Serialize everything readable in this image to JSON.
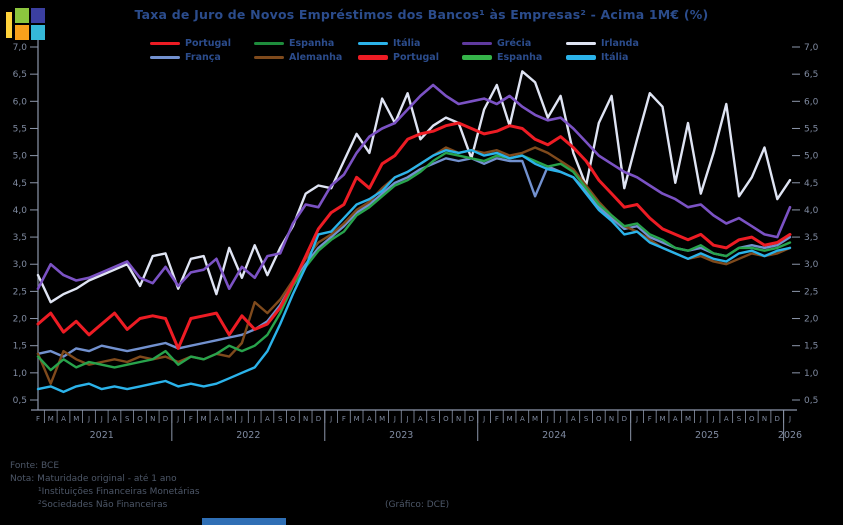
{
  "logo": {
    "bar_color": "#ffd23b",
    "tl_color": "#8cc63e",
    "tr_color": "#3b3fa0",
    "bl_color": "#f9a11b",
    "br_color": "#35b8d8"
  },
  "title": "Taxa de Juro de Novos Empréstimos dos Bancos¹ às Empresas² - Acima 1M€ (%)",
  "legend": {
    "items": [
      {
        "label": "Portugal",
        "color": "#ed1c24"
      },
      {
        "label": "Espanha",
        "color": "#1e8c3c"
      },
      {
        "label": "Itália",
        "color": "#2bb3ea"
      },
      {
        "label": "Grécia",
        "color": "#5f3a9e"
      },
      {
        "label": "Irlanda",
        "color": "#dfe4f3"
      },
      {
        "label": "França",
        "color": "#7291cf"
      },
      {
        "label": "Alemanha",
        "color": "#7f4a1c"
      },
      {
        "label": "Portugal",
        "color": "#ed1c24"
      },
      {
        "label": "Espanha",
        "color": "#35b44a"
      },
      {
        "label": "Itália",
        "color": "#2bb3ea"
      }
    ]
  },
  "footer": {
    "fonte": "Fonte: BCE",
    "nota": "Nota: Maturidade original - até 1 ano",
    "nota1": "¹Instituições Financeiras Monetárias",
    "nota2": "²Sociedades Não Financeiras",
    "grafico": "(Gráfico: DCE)",
    "bar_color": "#2f6fb5"
  },
  "chart_data": {
    "type": "line",
    "unit": "%",
    "title": "Taxa de Juro de Novos Empréstimos dos Bancos às Empresas - Acima 1M€ (%)",
    "ylim": [
      0.5,
      7.0
    ],
    "ytick_step": 0.5,
    "ytick_labels": [
      "7,0",
      "6,5",
      "6,0",
      "5,5",
      "5,0",
      "4,5",
      "4,0",
      "3,5",
      "3,0",
      "2,5",
      "2,0",
      "1,5",
      "1,0",
      "0,5"
    ],
    "grid": false,
    "legend_position": "top",
    "months": [
      "F",
      "M",
      "A",
      "M",
      "J",
      "J",
      "A",
      "S",
      "O",
      "N",
      "D",
      "J",
      "F",
      "M",
      "A",
      "M",
      "J",
      "J",
      "A",
      "S",
      "O",
      "N",
      "D",
      "J",
      "F",
      "M",
      "A",
      "M",
      "J",
      "J",
      "A",
      "S",
      "O",
      "N",
      "D",
      "J",
      "F",
      "M",
      "A",
      "M",
      "J",
      "J",
      "A",
      "S",
      "O",
      "N",
      "D",
      "J",
      "F",
      "M",
      "A",
      "M",
      "J",
      "J",
      "A",
      "S",
      "O",
      "N",
      "D",
      "J"
    ],
    "x_range": "Fev 2021 - Jan 2026",
    "years": [
      {
        "label": "2021",
        "from": 0,
        "to": 10
      },
      {
        "label": "2022",
        "from": 11,
        "to": 22
      },
      {
        "label": "2023",
        "from": 23,
        "to": 34
      },
      {
        "label": "2024",
        "from": 35,
        "to": 46
      },
      {
        "label": "2025",
        "from": 47,
        "to": 58
      },
      {
        "label": "2026",
        "from": 59,
        "to": 59
      }
    ],
    "series": [
      {
        "id": "irlanda",
        "name": "Irlanda",
        "color": "#dfe4f3",
        "width": 2.4,
        "values": [
          2.8,
          2.3,
          2.45,
          2.55,
          2.7,
          2.8,
          2.9,
          3.0,
          2.6,
          3.15,
          3.2,
          2.55,
          3.1,
          3.15,
          2.45,
          3.3,
          2.75,
          3.35,
          2.8,
          3.3,
          3.7,
          4.3,
          4.45,
          4.4,
          4.9,
          5.4,
          5.05,
          6.05,
          5.6,
          6.15,
          5.3,
          5.55,
          5.7,
          5.6,
          4.95,
          5.85,
          6.3,
          5.55,
          6.55,
          6.35,
          5.7,
          6.1,
          5.05,
          4.45,
          5.6,
          6.1,
          4.4,
          5.3,
          6.15,
          5.9,
          4.5,
          5.6,
          4.3,
          5.05,
          5.95,
          4.25,
          4.6,
          5.15,
          4.2,
          4.55
        ]
      },
      {
        "id": "grecia",
        "name": "Grécia",
        "color": "#7b52c4",
        "width": 2.6,
        "values": [
          2.55,
          3.0,
          2.8,
          2.7,
          2.75,
          2.85,
          2.95,
          3.05,
          2.75,
          2.65,
          2.95,
          2.6,
          2.85,
          2.9,
          3.1,
          2.55,
          2.95,
          2.75,
          3.15,
          3.2,
          3.75,
          4.1,
          4.05,
          4.45,
          4.65,
          5.05,
          5.35,
          5.5,
          5.6,
          5.85,
          6.1,
          6.3,
          6.1,
          5.95,
          6.0,
          6.05,
          5.95,
          6.1,
          5.9,
          5.75,
          5.65,
          5.7,
          5.5,
          5.25,
          5.0,
          4.85,
          4.7,
          4.6,
          4.45,
          4.3,
          4.2,
          4.05,
          4.1,
          3.9,
          3.75,
          3.85,
          3.7,
          3.55,
          3.5,
          4.05
        ]
      },
      {
        "id": "franca",
        "name": "França",
        "color": "#7291cf",
        "width": 2.4,
        "values": [
          1.35,
          1.4,
          1.3,
          1.45,
          1.4,
          1.5,
          1.45,
          1.4,
          1.45,
          1.5,
          1.55,
          1.45,
          1.5,
          1.55,
          1.6,
          1.65,
          1.7,
          1.8,
          1.95,
          2.25,
          2.65,
          3.0,
          3.3,
          3.5,
          3.7,
          3.95,
          4.1,
          4.3,
          4.5,
          4.6,
          4.75,
          4.85,
          4.95,
          4.9,
          4.95,
          4.85,
          4.95,
          4.9,
          4.9,
          4.25,
          4.8,
          4.7,
          4.6,
          4.35,
          4.05,
          3.85,
          3.65,
          3.7,
          3.5,
          3.4,
          3.3,
          3.25,
          3.3,
          3.2,
          3.15,
          3.3,
          3.35,
          3.3,
          3.35,
          3.5
        ]
      },
      {
        "id": "alemanha",
        "name": "Alemanha",
        "color": "#7f4a1c",
        "width": 2.4,
        "values": [
          1.35,
          0.8,
          1.4,
          1.25,
          1.15,
          1.2,
          1.25,
          1.2,
          1.3,
          1.25,
          1.3,
          1.2,
          1.3,
          1.25,
          1.35,
          1.3,
          1.55,
          2.3,
          2.1,
          2.35,
          2.7,
          3.1,
          3.4,
          3.55,
          3.75,
          4.0,
          4.15,
          4.4,
          4.6,
          4.7,
          4.85,
          5.0,
          5.15,
          5.05,
          5.1,
          5.05,
          5.1,
          5.0,
          5.05,
          5.15,
          5.05,
          4.9,
          4.75,
          4.45,
          4.15,
          3.9,
          3.7,
          3.6,
          3.45,
          3.3,
          3.2,
          3.1,
          3.15,
          3.05,
          3.0,
          3.1,
          3.2,
          3.15,
          3.2,
          3.3
        ]
      },
      {
        "id": "espanha",
        "name": "Espanha",
        "color": "#28a34c",
        "width": 2.4,
        "values": [
          1.3,
          1.05,
          1.25,
          1.1,
          1.2,
          1.15,
          1.1,
          1.15,
          1.2,
          1.25,
          1.4,
          1.15,
          1.3,
          1.25,
          1.35,
          1.5,
          1.4,
          1.5,
          1.7,
          2.1,
          2.6,
          2.95,
          3.25,
          3.45,
          3.6,
          3.9,
          4.05,
          4.25,
          4.45,
          4.55,
          4.7,
          4.9,
          5.05,
          5.0,
          4.95,
          4.9,
          5.0,
          4.95,
          5.0,
          4.9,
          4.8,
          4.85,
          4.7,
          4.4,
          4.1,
          3.9,
          3.7,
          3.75,
          3.55,
          3.45,
          3.3,
          3.25,
          3.35,
          3.2,
          3.15,
          3.3,
          3.3,
          3.25,
          3.3,
          3.4
        ]
      },
      {
        "id": "italia",
        "name": "Itália",
        "color": "#2bb3ea",
        "width": 2.4,
        "values": [
          0.7,
          0.75,
          0.65,
          0.75,
          0.8,
          0.7,
          0.75,
          0.7,
          0.75,
          0.8,
          0.85,
          0.75,
          0.8,
          0.75,
          0.8,
          0.9,
          1.0,
          1.1,
          1.4,
          1.9,
          2.45,
          2.95,
          3.55,
          3.6,
          3.85,
          4.1,
          4.2,
          4.35,
          4.6,
          4.7,
          4.85,
          5.0,
          5.1,
          5.05,
          5.1,
          5.0,
          5.05,
          4.95,
          5.0,
          4.85,
          4.75,
          4.7,
          4.6,
          4.3,
          4.0,
          3.8,
          3.55,
          3.6,
          3.4,
          3.3,
          3.2,
          3.1,
          3.2,
          3.1,
          3.05,
          3.2,
          3.25,
          3.15,
          3.25,
          3.3
        ]
      },
      {
        "id": "portugal",
        "name": "Portugal",
        "color": "#ed1c24",
        "width": 3,
        "values": [
          1.9,
          2.1,
          1.75,
          1.95,
          1.7,
          1.9,
          2.1,
          1.8,
          2.0,
          2.05,
          2.0,
          1.45,
          2.0,
          2.05,
          2.1,
          1.7,
          2.05,
          1.8,
          1.9,
          2.2,
          2.65,
          3.15,
          3.65,
          3.95,
          4.1,
          4.6,
          4.4,
          4.85,
          5.0,
          5.3,
          5.4,
          5.45,
          5.55,
          5.6,
          5.5,
          5.4,
          5.45,
          5.55,
          5.5,
          5.3,
          5.2,
          5.35,
          5.15,
          4.9,
          4.55,
          4.3,
          4.05,
          4.1,
          3.85,
          3.65,
          3.55,
          3.45,
          3.55,
          3.35,
          3.3,
          3.45,
          3.5,
          3.35,
          3.4,
          3.55
        ]
      }
    ]
  }
}
